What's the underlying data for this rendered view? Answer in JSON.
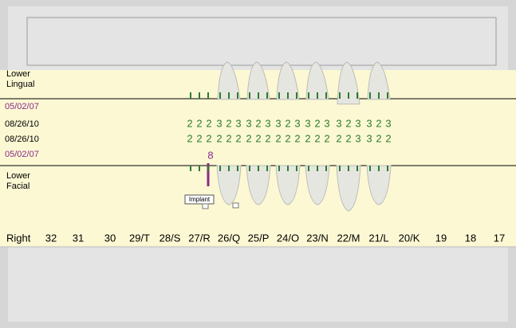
{
  "sections": {
    "lingual": [
      "Lower",
      "Lingual"
    ],
    "facial": [
      "Lower",
      "Facial"
    ]
  },
  "dates": [
    "05/02/07",
    "08/26/10",
    "08/26/10",
    "05/02/07"
  ],
  "pocket_rows": [
    [
      [
        2,
        2,
        2
      ],
      [
        3,
        2,
        3
      ],
      [
        3,
        2,
        3
      ],
      [
        3,
        2,
        3
      ],
      [
        3,
        2,
        3
      ],
      [
        3,
        2,
        3
      ],
      [
        3,
        2,
        3
      ]
    ],
    [
      [
        2,
        2,
        2
      ],
      [
        2,
        2,
        2
      ],
      [
        2,
        2,
        2
      ],
      [
        2,
        2,
        2
      ],
      [
        2,
        2,
        2
      ],
      [
        2,
        2,
        3
      ],
      [
        3,
        2,
        2
      ]
    ]
  ],
  "implant_depth": 8,
  "implant_label": "Implant",
  "side_label": "Right",
  "teeth": [
    "32",
    "31",
    "30",
    "29/T",
    "28/S",
    "27/R",
    "26/Q",
    "25/P",
    "24/O",
    "23/N",
    "22/M",
    "21/L",
    "20/K",
    "19",
    "18",
    "17"
  ]
}
